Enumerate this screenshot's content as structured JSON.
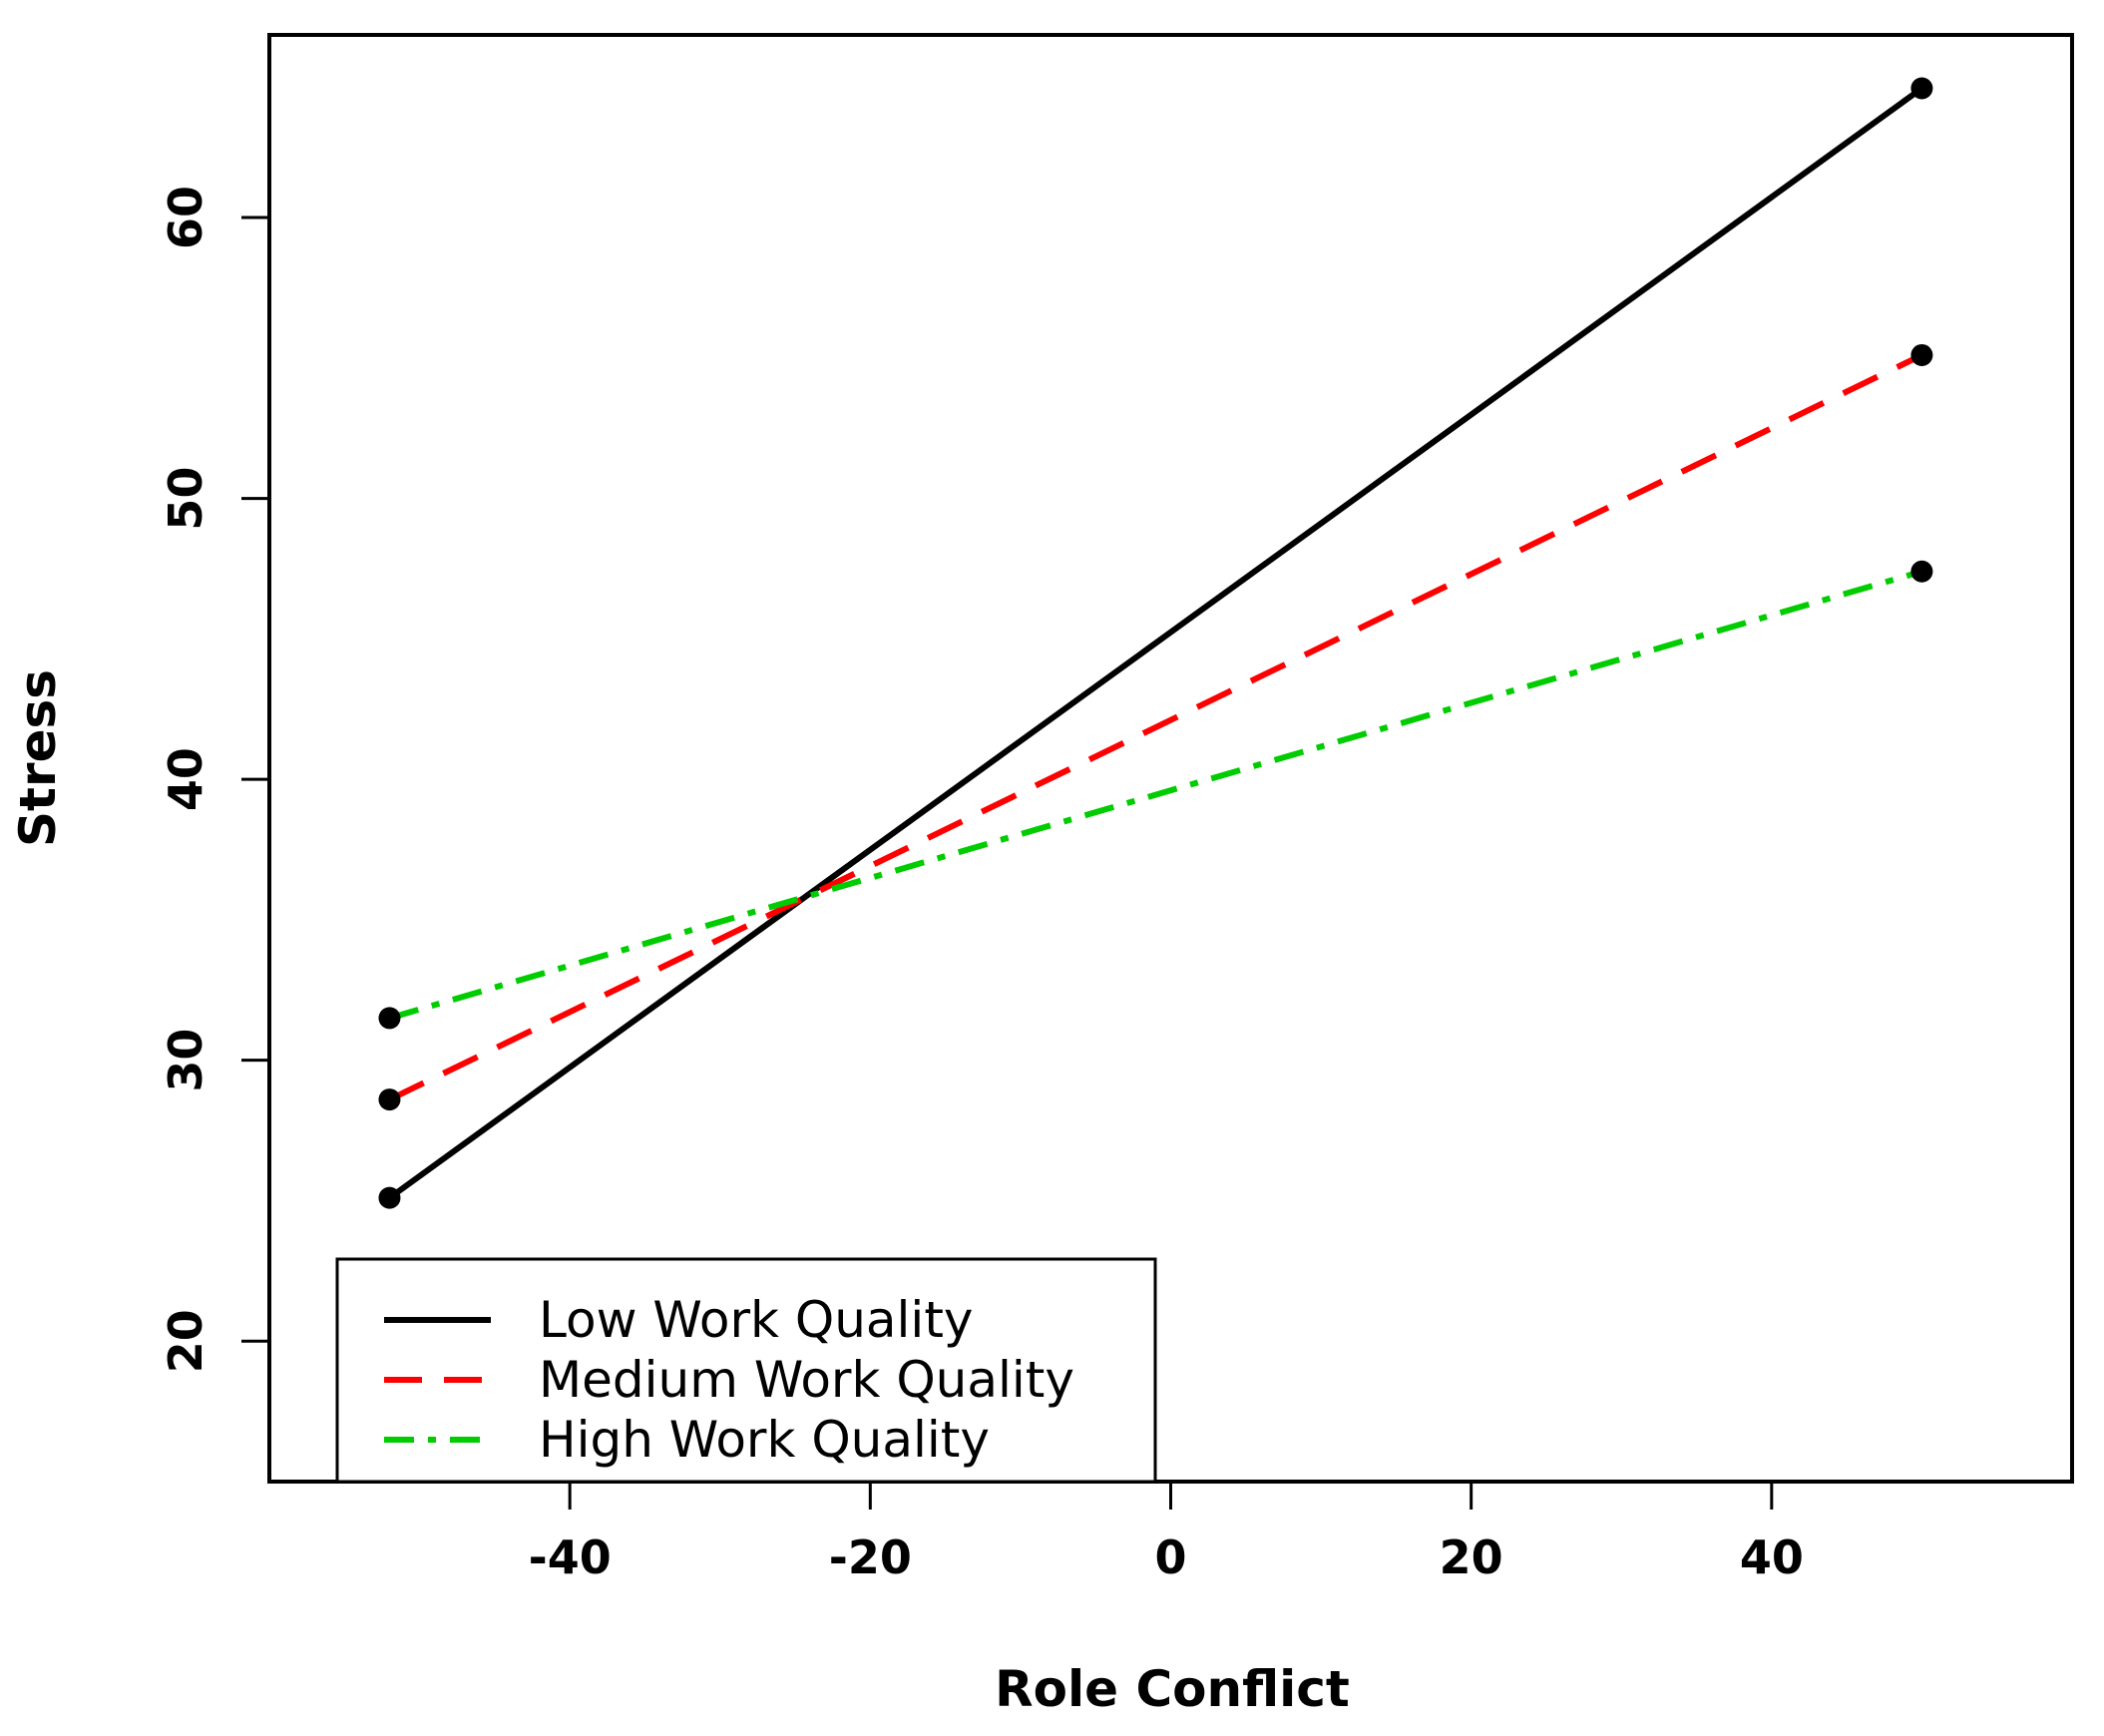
{
  "chart_data": {
    "type": "line",
    "title": "",
    "xlabel": "Role Conflict",
    "ylabel": "Stress",
    "xlim": [
      -60,
      60
    ],
    "ylim": [
      15,
      66.5
    ],
    "xticks": [
      -40,
      -20,
      0,
      20,
      40
    ],
    "yticks": [
      20,
      30,
      40,
      50,
      60
    ],
    "grid": false,
    "legend_position": "bottom-left",
    "series": [
      {
        "name": "Low Work Quality",
        "color": "#000000",
        "style": "solid",
        "x": [
          -52,
          50
        ],
        "y": [
          25.1,
          64.6
        ]
      },
      {
        "name": "Medium Work Quality",
        "color": "#ff0000",
        "style": "dashed",
        "x": [
          -52,
          50
        ],
        "y": [
          28.6,
          55.1
        ]
      },
      {
        "name": "High Work Quality",
        "color": "#00cc00",
        "style": "dashdot",
        "x": [
          -52,
          50
        ],
        "y": [
          31.5,
          47.4
        ]
      }
    ]
  }
}
